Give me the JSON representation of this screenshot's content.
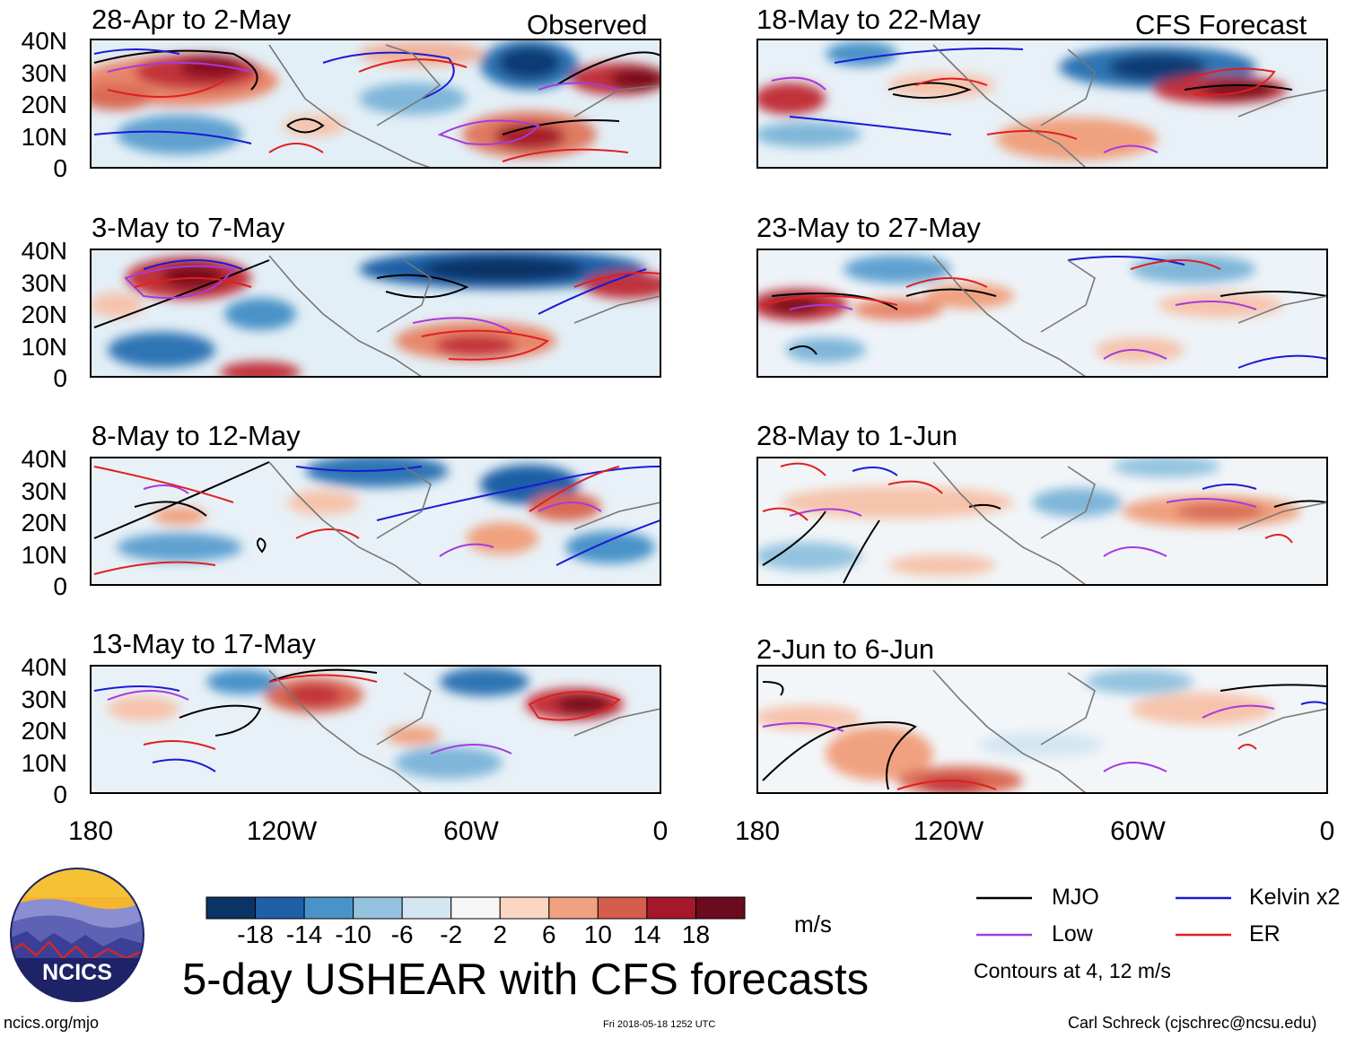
{
  "figure": {
    "title": "5-day USHEAR with CFS forecasts",
    "corner_observed": "Observed",
    "corner_forecast": "CFS Forecast",
    "units": "m/s",
    "contour_note": "Contours at 4, 12 m/s"
  },
  "panels": {
    "left": [
      {
        "title": "28-Apr to 2-May"
      },
      {
        "title": "3-May to 7-May"
      },
      {
        "title": "8-May to 12-May"
      },
      {
        "title": "13-May to 17-May"
      }
    ],
    "right": [
      {
        "title": "18-May to 22-May"
      },
      {
        "title": "23-May to 27-May"
      },
      {
        "title": "28-May to 1-Jun"
      },
      {
        "title": "2-Jun to 6-Jun"
      }
    ]
  },
  "axes": {
    "y_ticks": [
      "40N",
      "30N",
      "20N",
      "10N",
      "0"
    ],
    "x_ticks": [
      "180",
      "120W",
      "60W",
      "0"
    ]
  },
  "colorbar": {
    "labels": [
      "-18",
      "-14",
      "-10",
      "-6",
      "-2",
      "2",
      "6",
      "10",
      "14",
      "18"
    ],
    "colors": [
      "#0b3366",
      "#1f5fa6",
      "#4a93c8",
      "#93c3df",
      "#d3e6f1",
      "#f7f7f7",
      "#fbd7c3",
      "#f0a17f",
      "#d45d4b",
      "#a5172a",
      "#6a0b1e"
    ]
  },
  "legend": [
    {
      "label": "MJO",
      "color": "#000000"
    },
    {
      "label": "Kelvin x2",
      "color": "#1a1ad6"
    },
    {
      "label": "Low",
      "color": "#a63ae0"
    },
    {
      "label": "ER",
      "color": "#e01f1f"
    }
  ],
  "logo": {
    "text": "NCICS"
  },
  "footer": {
    "left": "ncics.org/mjo",
    "center": "Fri 2018-05-18 1252 UTC",
    "right": "Carl Schreck (cjschrec@ncsu.edu)"
  }
}
